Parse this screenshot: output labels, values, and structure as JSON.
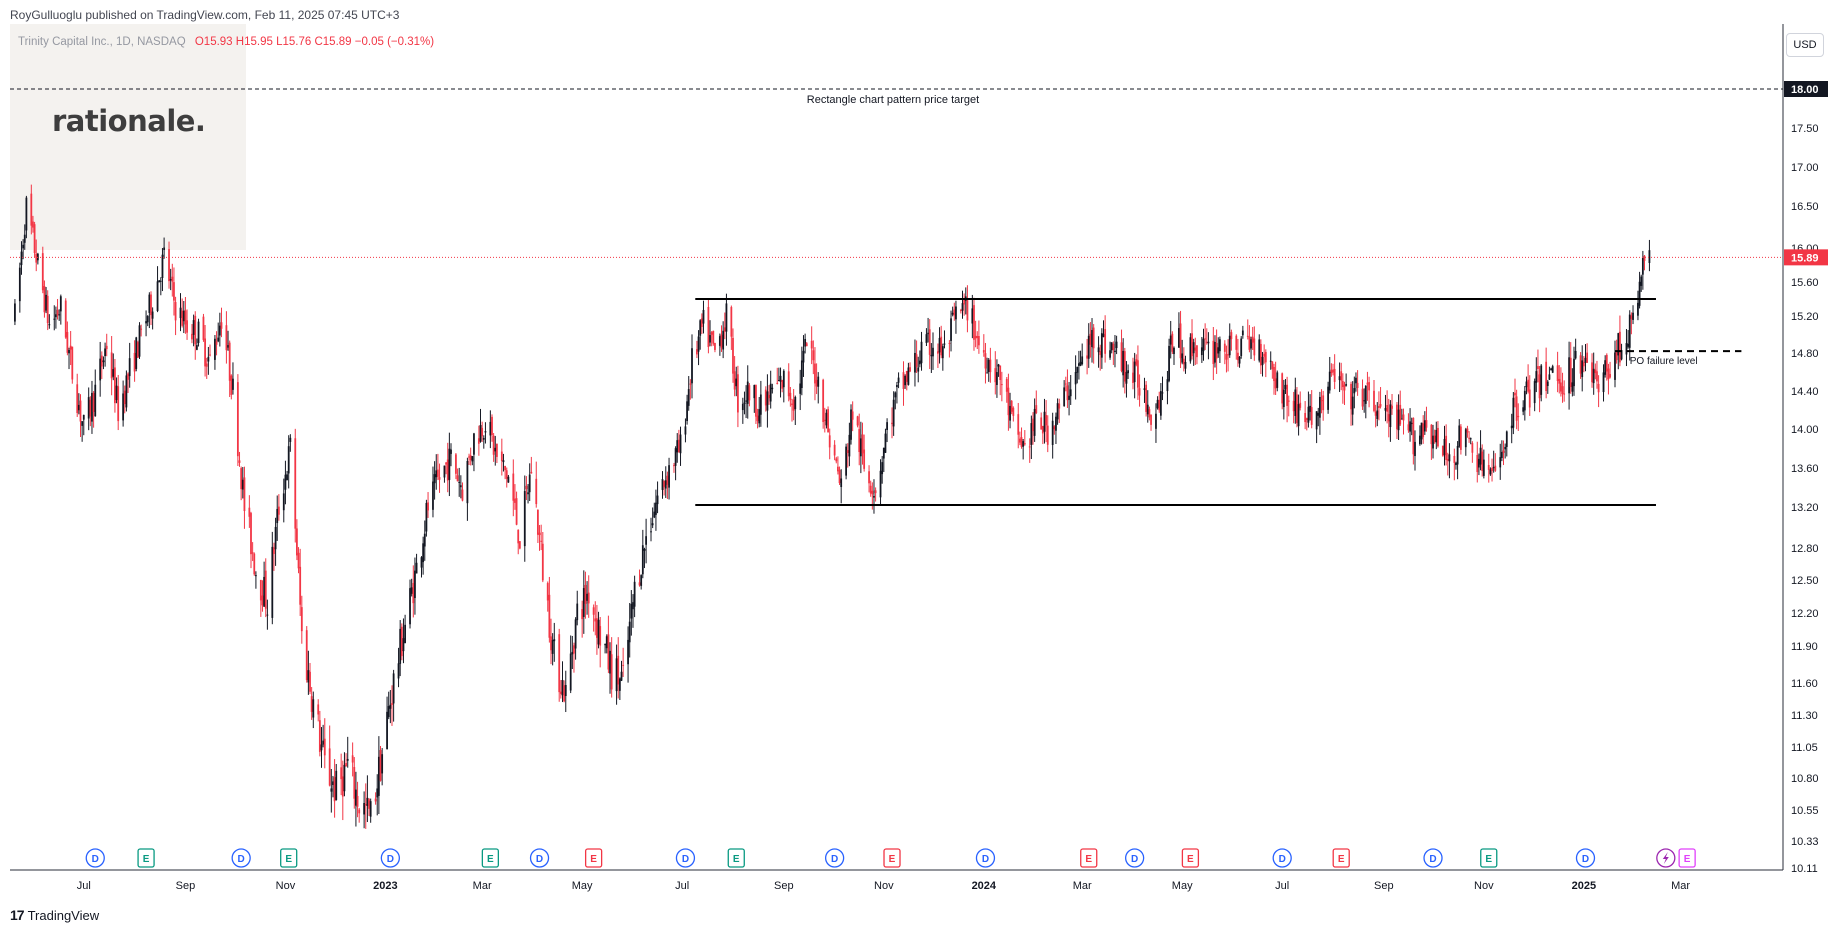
{
  "header": {
    "published": "RoyGulluoglu published on TradingView.com, Feb 11, 2025 07:45 UTC+3"
  },
  "legend": {
    "symbol": "Trinity Capital Inc., 1D, NASDAQ",
    "open": "O15.93",
    "high": "H15.95",
    "low": "L15.76",
    "close": "C15.89",
    "change": "−0.05 (−0.31%)"
  },
  "logo": {
    "text": "rationale."
  },
  "currency_button": {
    "label": "USD"
  },
  "footer": {
    "brand": "TradingView",
    "brand_mark": "17"
  },
  "colors": {
    "up": "#131722",
    "down": "#f23645",
    "last_price": "#f23645",
    "earnings": "#089981",
    "dividend": "#2962ff",
    "split": "#9c27b0",
    "future": "#e040fb"
  },
  "chart_data": {
    "type": "candlestick",
    "y_axis": {
      "range": [
        10.11,
        18.9
      ],
      "tick_labels": [
        "10.11",
        "10.33",
        "10.55",
        "10.80",
        "11.05",
        "11.30",
        "11.60",
        "11.90",
        "12.20",
        "12.50",
        "12.80",
        "13.20",
        "13.60",
        "14.00",
        "14.40",
        "14.80",
        "15.20",
        "15.60",
        "16.00",
        "16.50",
        "17.00",
        "17.50",
        "18.00"
      ]
    },
    "x_axis": {
      "tick_labels": [
        "Jul",
        "Sep",
        "Nov",
        "2023",
        "Mar",
        "May",
        "Jul",
        "Sep",
        "Nov",
        "2024",
        "Mar",
        "May",
        "Jul",
        "Sep",
        "Nov",
        "2025",
        "Mar"
      ],
      "bold_labels": [
        "2023",
        "2024",
        "2025"
      ]
    },
    "last_price": {
      "value": 15.89,
      "label": "15.89"
    },
    "price_target": {
      "value": 18.0,
      "label": "18.00",
      "annotation": "Rectangle chart pattern price target"
    },
    "rectangle": {
      "upper": 15.4,
      "lower": 13.22,
      "start": "2023-07",
      "end": "2025-02"
    },
    "failure_level": {
      "value": 14.82,
      "annotation": "PO failure level"
    },
    "price_path": [
      [
        "2022-05-20",
        15.2
      ],
      [
        "2022-05-27",
        16.5
      ],
      [
        "2022-06-03",
        15.8
      ],
      [
        "2022-06-10",
        15.1
      ],
      [
        "2022-06-17",
        15.3
      ],
      [
        "2022-06-24",
        14.6
      ],
      [
        "2022-07-01",
        14.0
      ],
      [
        "2022-07-08",
        14.4
      ],
      [
        "2022-07-15",
        14.9
      ],
      [
        "2022-07-22",
        14.2
      ],
      [
        "2022-07-29",
        14.6
      ],
      [
        "2022-08-05",
        15.0
      ],
      [
        "2022-08-12",
        15.4
      ],
      [
        "2022-08-19",
        15.9
      ],
      [
        "2022-08-26",
        15.3
      ],
      [
        "2022-09-02",
        15.1
      ],
      [
        "2022-09-09",
        15.0
      ],
      [
        "2022-09-16",
        14.7
      ],
      [
        "2022-09-23",
        15.2
      ],
      [
        "2022-09-30",
        14.4
      ],
      [
        "2022-10-07",
        13.2
      ],
      [
        "2022-10-14",
        12.6
      ],
      [
        "2022-10-21",
        12.3
      ],
      [
        "2022-10-28",
        13.2
      ],
      [
        "2022-11-04",
        13.8
      ],
      [
        "2022-11-11",
        12.0
      ],
      [
        "2022-11-18",
        11.4
      ],
      [
        "2022-11-25",
        10.9
      ],
      [
        "2022-12-02",
        10.7
      ],
      [
        "2022-12-09",
        10.9
      ],
      [
        "2022-12-16",
        10.6
      ],
      [
        "2022-12-23",
        10.5
      ],
      [
        "2022-12-30",
        11.0
      ],
      [
        "2023-01-06",
        11.6
      ],
      [
        "2023-01-13",
        12.1
      ],
      [
        "2023-01-20",
        12.6
      ],
      [
        "2023-01-27",
        13.2
      ],
      [
        "2023-02-03",
        13.5
      ],
      [
        "2023-02-10",
        13.7
      ],
      [
        "2023-02-17",
        13.4
      ],
      [
        "2023-02-24",
        13.9
      ],
      [
        "2023-03-03",
        14.1
      ],
      [
        "2023-03-10",
        13.7
      ],
      [
        "2023-03-17",
        13.5
      ],
      [
        "2023-03-24",
        12.9
      ],
      [
        "2023-03-31",
        13.6
      ],
      [
        "2023-04-07",
        12.6
      ],
      [
        "2023-04-14",
        11.8
      ],
      [
        "2023-04-21",
        11.5
      ],
      [
        "2023-04-28",
        12.2
      ],
      [
        "2023-05-05",
        12.4
      ],
      [
        "2023-05-12",
        12.0
      ],
      [
        "2023-05-19",
        11.7
      ],
      [
        "2023-05-26",
        11.6
      ],
      [
        "2023-06-02",
        12.4
      ],
      [
        "2023-06-09",
        12.9
      ],
      [
        "2023-06-16",
        13.3
      ],
      [
        "2023-06-23",
        13.6
      ],
      [
        "2023-06-30",
        13.8
      ],
      [
        "2023-07-07",
        14.7
      ],
      [
        "2023-07-14",
        15.1
      ],
      [
        "2023-07-21",
        14.8
      ],
      [
        "2023-07-28",
        15.2
      ],
      [
        "2023-08-04",
        14.3
      ],
      [
        "2023-08-11",
        14.4
      ],
      [
        "2023-08-18",
        14.2
      ],
      [
        "2023-08-25",
        14.4
      ],
      [
        "2023-09-01",
        14.5
      ],
      [
        "2023-09-08",
        14.3
      ],
      [
        "2023-09-15",
        14.9
      ],
      [
        "2023-09-22",
        14.5
      ],
      [
        "2023-09-29",
        13.9
      ],
      [
        "2023-10-06",
        13.4
      ],
      [
        "2023-10-13",
        14.2
      ],
      [
        "2023-10-20",
        13.6
      ],
      [
        "2023-10-27",
        13.4
      ],
      [
        "2023-11-03",
        14.0
      ],
      [
        "2023-11-10",
        14.4
      ],
      [
        "2023-11-17",
        14.6
      ],
      [
        "2023-11-24",
        14.8
      ],
      [
        "2023-12-01",
        14.9
      ],
      [
        "2023-12-08",
        14.8
      ],
      [
        "2023-12-15",
        15.2
      ],
      [
        "2023-12-22",
        15.3
      ],
      [
        "2023-12-29",
        14.9
      ],
      [
        "2024-01-05",
        14.7
      ],
      [
        "2024-01-12",
        14.5
      ],
      [
        "2024-01-19",
        14.0
      ],
      [
        "2024-01-26",
        13.8
      ],
      [
        "2024-02-02",
        14.1
      ],
      [
        "2024-02-09",
        14.0
      ],
      [
        "2024-02-16",
        14.2
      ],
      [
        "2024-02-23",
        14.5
      ],
      [
        "2024-03-01",
        14.7
      ],
      [
        "2024-03-08",
        15.0
      ],
      [
        "2024-03-15",
        14.9
      ],
      [
        "2024-03-22",
        14.8
      ],
      [
        "2024-03-29",
        14.6
      ],
      [
        "2024-04-05",
        14.5
      ],
      [
        "2024-04-12",
        14.2
      ],
      [
        "2024-04-19",
        14.4
      ],
      [
        "2024-04-26",
        15.0
      ],
      [
        "2024-05-03",
        14.8
      ],
      [
        "2024-05-10",
        14.9
      ],
      [
        "2024-05-17",
        14.8
      ],
      [
        "2024-05-24",
        14.9
      ],
      [
        "2024-05-31",
        14.8
      ],
      [
        "2024-06-07",
        14.9
      ],
      [
        "2024-06-14",
        14.9
      ],
      [
        "2024-06-21",
        14.8
      ],
      [
        "2024-06-28",
        14.5
      ],
      [
        "2024-07-05",
        14.3
      ],
      [
        "2024-07-12",
        14.2
      ],
      [
        "2024-07-19",
        14.1
      ],
      [
        "2024-07-26",
        14.3
      ],
      [
        "2024-08-02",
        14.6
      ],
      [
        "2024-08-09",
        14.3
      ],
      [
        "2024-08-16",
        14.4
      ],
      [
        "2024-08-23",
        14.3
      ],
      [
        "2024-08-30",
        14.2
      ],
      [
        "2024-09-06",
        14.1
      ],
      [
        "2024-09-13",
        14.0
      ],
      [
        "2024-09-20",
        13.9
      ],
      [
        "2024-09-27",
        14.1
      ],
      [
        "2024-10-04",
        13.8
      ],
      [
        "2024-10-11",
        13.7
      ],
      [
        "2024-10-18",
        13.9
      ],
      [
        "2024-10-25",
        13.8
      ],
      [
        "2024-11-01",
        13.6
      ],
      [
        "2024-11-08",
        13.5
      ],
      [
        "2024-11-15",
        14.0
      ],
      [
        "2024-11-22",
        14.3
      ],
      [
        "2024-11-29",
        14.4
      ],
      [
        "2024-12-06",
        14.5
      ],
      [
        "2024-12-13",
        14.6
      ],
      [
        "2024-12-20",
        14.5
      ],
      [
        "2024-12-27",
        14.7
      ],
      [
        "2025-01-03",
        14.8
      ],
      [
        "2025-01-10",
        14.4
      ],
      [
        "2025-01-17",
        14.7
      ],
      [
        "2025-01-24",
        14.9
      ],
      [
        "2025-01-31",
        15.1
      ],
      [
        "2025-02-07",
        15.9
      ],
      [
        "2025-02-10",
        15.89
      ]
    ],
    "events": [
      {
        "date": "2022-07-08",
        "type": "D"
      },
      {
        "date": "2022-08-08",
        "type": "E"
      },
      {
        "date": "2022-10-05",
        "type": "D"
      },
      {
        "date": "2022-11-03",
        "type": "E"
      },
      {
        "date": "2023-01-04",
        "type": "D"
      },
      {
        "date": "2023-03-06",
        "type": "E"
      },
      {
        "date": "2023-04-05",
        "type": "D"
      },
      {
        "date": "2023-05-08",
        "type": "E"
      },
      {
        "date": "2023-07-03",
        "type": "D"
      },
      {
        "date": "2023-08-03",
        "type": "E"
      },
      {
        "date": "2023-10-02",
        "type": "D"
      },
      {
        "date": "2023-11-06",
        "type": "E"
      },
      {
        "date": "2024-01-02",
        "type": "D"
      },
      {
        "date": "2024-03-05",
        "type": "E"
      },
      {
        "date": "2024-04-02",
        "type": "D"
      },
      {
        "date": "2024-05-06",
        "type": "E"
      },
      {
        "date": "2024-07-01",
        "type": "D"
      },
      {
        "date": "2024-08-06",
        "type": "E"
      },
      {
        "date": "2024-10-01",
        "type": "D"
      },
      {
        "date": "2024-11-04",
        "type": "E"
      },
      {
        "date": "2025-01-02",
        "type": "D"
      },
      {
        "date": "2025-02-20",
        "type": "split"
      },
      {
        "date": "2025-03-05",
        "type": "E"
      }
    ]
  }
}
